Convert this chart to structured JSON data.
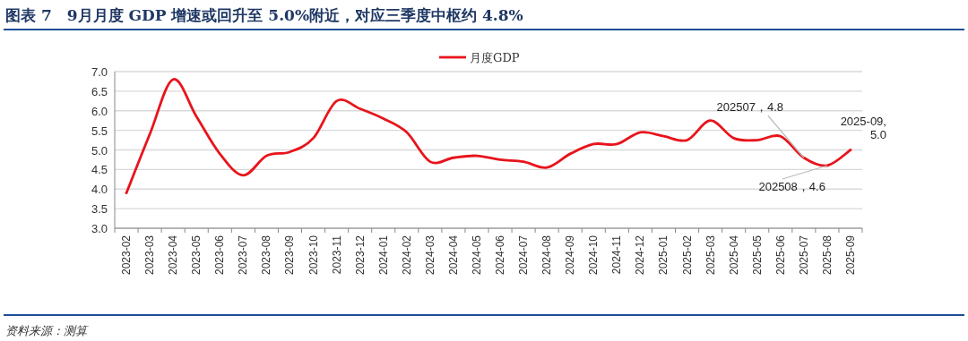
{
  "chart_data": {
    "type": "line",
    "title": "图表 7　9月月度 GDP 增速或回升至 5.0%附近，对应三季度中枢约 4.8%",
    "categories": [
      "2023-02",
      "2023-03",
      "2023-04",
      "2023-05",
      "2023-06",
      "2023-07",
      "2023-08",
      "2023-09",
      "2023-10",
      "2023-11",
      "2023-12",
      "2024-01",
      "2024-02",
      "2024-03",
      "2024-04",
      "2024-05",
      "2024-06",
      "2024-07",
      "2024-08",
      "2024-09",
      "2024-10",
      "2024-11",
      "2024-12",
      "2025-01",
      "2025-02",
      "2025-03",
      "2025-04",
      "2025-05",
      "2025-06",
      "2025-07",
      "2025-08",
      "2025-09"
    ],
    "series": [
      {
        "name": "月度GDP",
        "color": "#e8141c",
        "values": [
          3.9,
          5.4,
          6.8,
          5.85,
          4.9,
          4.35,
          4.85,
          4.95,
          5.3,
          6.25,
          6.05,
          5.8,
          5.45,
          4.7,
          4.8,
          4.85,
          4.75,
          4.7,
          4.55,
          4.9,
          5.15,
          5.15,
          5.45,
          5.35,
          5.25,
          5.75,
          5.3,
          5.25,
          5.35,
          4.8,
          4.6,
          5.0
        ]
      }
    ],
    "ylim": [
      3.0,
      7.0
    ],
    "yticks": [
      {
        "value": 3.0,
        "label": "3.0"
      },
      {
        "value": 3.5,
        "label": "3.5"
      },
      {
        "value": 4.0,
        "label": "4.0"
      },
      {
        "value": 4.5,
        "label": "4.5"
      },
      {
        "value": 5.0,
        "label": "5.0"
      },
      {
        "value": 5.5,
        "label": "5.5"
      },
      {
        "value": 6.0,
        "label": "6.0"
      },
      {
        "value": 6.5,
        "label": "6.5"
      },
      {
        "value": 7.0,
        "label": "7.0"
      }
    ],
    "grid": "y",
    "legend": "top",
    "marker": "none",
    "line_style": "solid",
    "annotations": [
      {
        "text": "202507，4.8",
        "x": "2025-07",
        "y": 4.8
      },
      {
        "text": "202508，4.6",
        "x": "2025-08",
        "y": 4.6
      },
      {
        "text": "2025-09,\n5.0",
        "x": "2025-09",
        "y": 5.0
      },
      "资料来源：测算"
    ]
  }
}
